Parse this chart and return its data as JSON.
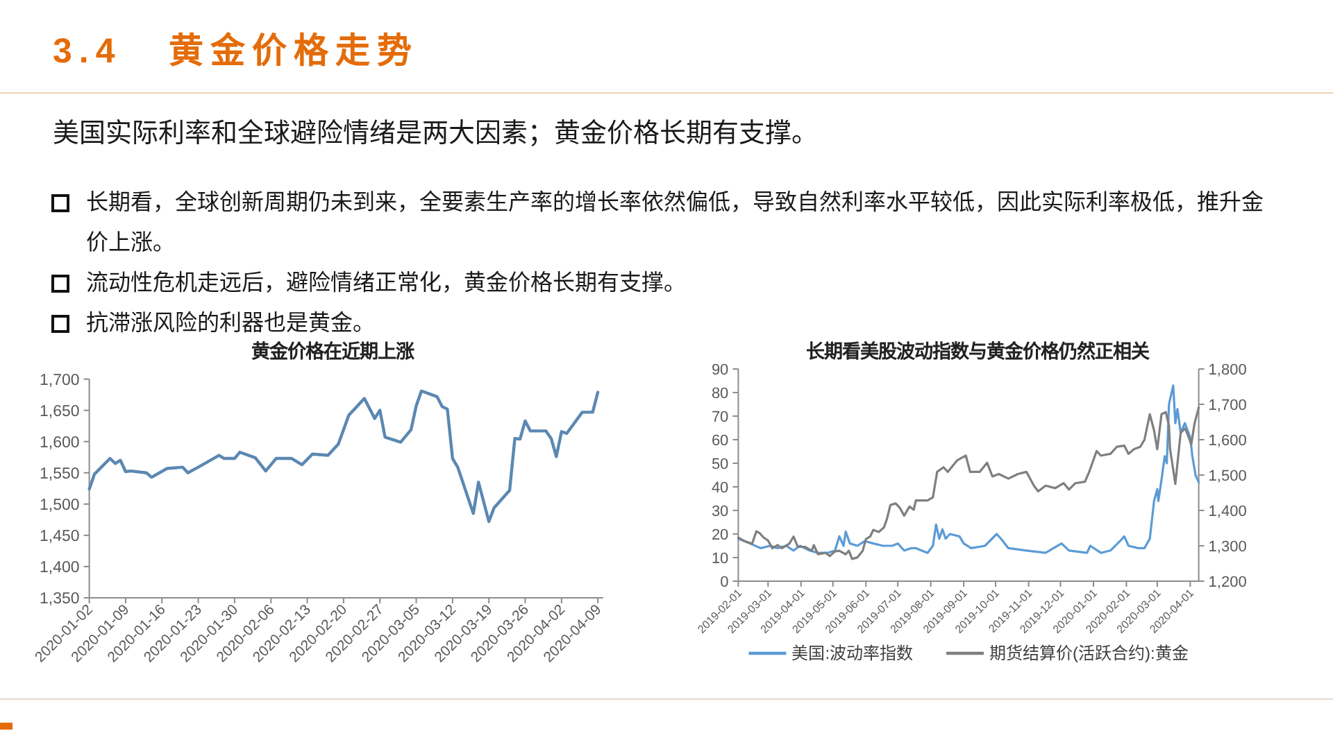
{
  "chart_data": [
    {
      "type": "other",
      "title": "3.4 黄金价格走势",
      "subtitle": "美国实际利率和全球避险情绪是两大因素；黄金价格长期有支撑。",
      "annotations": [
        "长期看，全球创新周期仍未到来，全要素生产率的增长率依然偏低，导致自然利率水平较低，因此实际利率极低，推升金价上涨。",
        "流动性危机走远后，避险情绪正常化，黄金价格长期有支撑。",
        "抗滞涨风险的利器也是黄金。"
      ]
    },
    {
      "type": "line",
      "title": "黄金价格在近期上涨",
      "color": "#5b88b2",
      "x": [
        "2020-01-02",
        "2020-01-03",
        "2020-01-06",
        "2020-01-07",
        "2020-01-08",
        "2020-01-09",
        "2020-01-10",
        "2020-01-13",
        "2020-01-14",
        "2020-01-17",
        "2020-01-20",
        "2020-01-21",
        "2020-01-23",
        "2020-01-27",
        "2020-01-28",
        "2020-01-30",
        "2020-01-31",
        "2020-02-03",
        "2020-02-05",
        "2020-02-07",
        "2020-02-10",
        "2020-02-11",
        "2020-02-12",
        "2020-02-14",
        "2020-02-17",
        "2020-02-19",
        "2020-02-21",
        "2020-02-24",
        "2020-02-26",
        "2020-02-27",
        "2020-02-28",
        "2020-03-02",
        "2020-03-04",
        "2020-03-05",
        "2020-03-06",
        "2020-03-09",
        "2020-03-10",
        "2020-03-11",
        "2020-03-12",
        "2020-03-13",
        "2020-03-16",
        "2020-03-17",
        "2020-03-19",
        "2020-03-20",
        "2020-03-23",
        "2020-03-24",
        "2020-03-25",
        "2020-03-26",
        "2020-03-27",
        "2020-03-30",
        "2020-03-31",
        "2020-04-01",
        "2020-04-02",
        "2020-04-03",
        "2020-04-06",
        "2020-04-08",
        "2020-04-09"
      ],
      "values": [
        1524,
        1548,
        1573,
        1565,
        1570,
        1552,
        1553,
        1550,
        1543,
        1557,
        1559,
        1550,
        1559,
        1578,
        1573,
        1573,
        1583,
        1574,
        1553,
        1573,
        1573,
        1568,
        1563,
        1580,
        1578,
        1596,
        1642,
        1669,
        1637,
        1650,
        1607,
        1599,
        1619,
        1657,
        1681,
        1672,
        1656,
        1652,
        1573,
        1559,
        1485,
        1535,
        1472,
        1494,
        1522,
        1605,
        1604,
        1633,
        1617,
        1617,
        1605,
        1576,
        1616,
        1613,
        1647,
        1647,
        1679
      ],
      "xlim": [
        "2020-01-02",
        "2020-04-10"
      ],
      "xticks": [
        "2020-01-02",
        "2020-01-09",
        "2020-01-16",
        "2020-01-23",
        "2020-01-30",
        "2020-02-06",
        "2020-02-13",
        "2020-02-20",
        "2020-02-27",
        "2020-03-05",
        "2020-03-12",
        "2020-03-19",
        "2020-03-26",
        "2020-04-02",
        "2020-04-09"
      ],
      "ylim": [
        1350,
        1700
      ],
      "yticks": [
        {
          "value": 1350,
          "label": "1,350"
        },
        {
          "value": 1400,
          "label": "1,400"
        },
        {
          "value": 1450,
          "label": "1,450"
        },
        {
          "value": 1500,
          "label": "1,500"
        },
        {
          "value": 1550,
          "label": "1,550"
        },
        {
          "value": 1600,
          "label": "1,600"
        },
        {
          "value": 1650,
          "label": "1,650"
        },
        {
          "value": 1700,
          "label": "1,700"
        }
      ]
    },
    {
      "type": "line",
      "title": "长期看美股波动指数与黄金价格仍然正相关",
      "legend": "bottom",
      "series": [
        {
          "name": "美国:波动率指数",
          "color": "#5b9bd5",
          "x": [
            "2019-02-01",
            "2019-02-12",
            "2019-02-22",
            "2019-03-03",
            "2019-03-10",
            "2019-03-18",
            "2019-03-25",
            "2019-03-31",
            "2019-04-09",
            "2019-04-17",
            "2019-04-26",
            "2019-05-03",
            "2019-05-07",
            "2019-05-11",
            "2019-05-13",
            "2019-05-17",
            "2019-05-24",
            "2019-05-31",
            "2019-06-08",
            "2019-06-17",
            "2019-06-26",
            "2019-07-01",
            "2019-07-07",
            "2019-07-14",
            "2019-07-18",
            "2019-07-29",
            "2019-08-03",
            "2019-08-06",
            "2019-08-09",
            "2019-08-12",
            "2019-08-15",
            "2019-08-19",
            "2019-08-28",
            "2019-09-01",
            "2019-09-08",
            "2019-09-21",
            "2019-10-02",
            "2019-10-06",
            "2019-10-13",
            "2019-10-30",
            "2019-11-17",
            "2019-12-02",
            "2019-12-09",
            "2019-12-26",
            "2019-12-29",
            "2020-01-08",
            "2020-01-17",
            "2020-01-26",
            "2020-01-30",
            "2020-02-03",
            "2020-02-12",
            "2020-02-18",
            "2020-02-23",
            "2020-02-27",
            "2020-03-01",
            "2020-03-02",
            "2020-03-05",
            "2020-03-08",
            "2020-03-10",
            "2020-03-12",
            "2020-03-16",
            "2020-03-18",
            "2020-03-20",
            "2020-03-23",
            "2020-03-27",
            "2020-04-01",
            "2020-04-03",
            "2020-04-06",
            "2020-04-09"
          ],
          "values": [
            18,
            16,
            14,
            15,
            14,
            15,
            13,
            15,
            13,
            12,
            12,
            13,
            19,
            15,
            21,
            16,
            15,
            17,
            16,
            15,
            15,
            16,
            13,
            14,
            14,
            12,
            15,
            24,
            18,
            22,
            18,
            20,
            19,
            16,
            14,
            15,
            20,
            18,
            14,
            13,
            12,
            16,
            13,
            12,
            15,
            12,
            13,
            17,
            19,
            15,
            14,
            14,
            18,
            34,
            39,
            34,
            43,
            53,
            50,
            75,
            83,
            67,
            73,
            63,
            67,
            61,
            53,
            45,
            42
          ]
        },
        {
          "name": "期货结算价(活跃合约):黄金",
          "color": "#7f7f7f",
          "axis": "y2",
          "x": [
            "2019-02-01",
            "2019-02-07",
            "2019-02-14",
            "2019-02-18",
            "2019-02-21",
            "2019-02-25",
            "2019-03-01",
            "2019-03-05",
            "2019-03-10",
            "2019-03-14",
            "2019-03-21",
            "2019-03-25",
            "2019-03-29",
            "2019-04-05",
            "2019-04-11",
            "2019-04-13",
            "2019-04-17",
            "2019-04-24",
            "2019-04-28",
            "2019-05-03",
            "2019-05-07",
            "2019-05-13",
            "2019-05-16",
            "2019-05-19",
            "2019-05-24",
            "2019-05-29",
            "2019-06-01",
            "2019-06-05",
            "2019-06-08",
            "2019-06-13",
            "2019-06-18",
            "2019-06-21",
            "2019-06-24",
            "2019-06-29",
            "2019-07-03",
            "2019-07-07",
            "2019-07-12",
            "2019-07-16",
            "2019-07-18",
            "2019-07-29",
            "2019-08-03",
            "2019-08-07",
            "2019-08-13",
            "2019-08-17",
            "2019-08-26",
            "2019-09-03",
            "2019-09-07",
            "2019-09-16",
            "2019-09-23",
            "2019-09-28",
            "2019-10-04",
            "2019-10-13",
            "2019-10-22",
            "2019-10-30",
            "2019-11-06",
            "2019-11-10",
            "2019-11-17",
            "2019-11-26",
            "2019-12-04",
            "2019-12-09",
            "2019-12-15",
            "2019-12-24",
            "2019-12-28",
            "2020-01-04",
            "2020-01-08",
            "2020-01-17",
            "2020-01-23",
            "2020-01-30",
            "2020-02-03",
            "2020-02-08",
            "2020-02-14",
            "2020-02-18",
            "2020-02-23",
            "2020-02-27",
            "2020-03-01",
            "2020-03-05",
            "2020-03-09",
            "2020-03-12",
            "2020-03-13",
            "2020-03-16",
            "2020-03-18",
            "2020-03-23",
            "2020-03-27",
            "2020-03-29",
            "2020-04-02",
            "2020-04-05",
            "2020-04-09"
          ],
          "values": [
            1323,
            1313,
            1306,
            1341,
            1336,
            1323,
            1315,
            1293,
            1302,
            1293,
            1306,
            1326,
            1297,
            1297,
            1286,
            1302,
            1276,
            1280,
            1271,
            1284,
            1286,
            1276,
            1286,
            1263,
            1267,
            1286,
            1319,
            1326,
            1345,
            1339,
            1352,
            1378,
            1415,
            1420,
            1407,
            1385,
            1411,
            1402,
            1428,
            1428,
            1437,
            1509,
            1522,
            1509,
            1542,
            1555,
            1509,
            1509,
            1535,
            1496,
            1503,
            1490,
            1503,
            1509,
            1470,
            1454,
            1470,
            1463,
            1477,
            1459,
            1477,
            1481,
            1509,
            1568,
            1555,
            1560,
            1580,
            1583,
            1560,
            1573,
            1580,
            1600,
            1672,
            1626,
            1573,
            1672,
            1678,
            1640,
            1575,
            1515,
            1475,
            1619,
            1632,
            1619,
            1587,
            1645,
            1691
          ]
        }
      ],
      "xlim": [
        "2019-02-01",
        "2020-04-09"
      ],
      "xticks": [
        "2019-02-01",
        "2019-03-01",
        "2019-04-01",
        "2019-05-01",
        "2019-06-01",
        "2019-07-01",
        "2019-08-01",
        "2019-09-01",
        "2019-10-01",
        "2019-11-01",
        "2019-12-01",
        "2020-01-01",
        "2020-02-01",
        "2020-03-01",
        "2020-04-01"
      ],
      "ylim": [
        0,
        90
      ],
      "yticks": [
        0,
        10,
        20,
        30,
        40,
        50,
        60,
        70,
        80,
        90
      ],
      "y2lim": [
        1200,
        1800
      ],
      "y2ticks": [
        {
          "value": 1200,
          "label": "1,200"
        },
        {
          "value": 1300,
          "label": "1,300"
        },
        {
          "value": 1400,
          "label": "1,400"
        },
        {
          "value": 1500,
          "label": "1,500"
        },
        {
          "value": 1600,
          "label": "1,600"
        },
        {
          "value": 1700,
          "label": "1,700"
        },
        {
          "value": 1800,
          "label": "1,800"
        }
      ]
    }
  ]
}
